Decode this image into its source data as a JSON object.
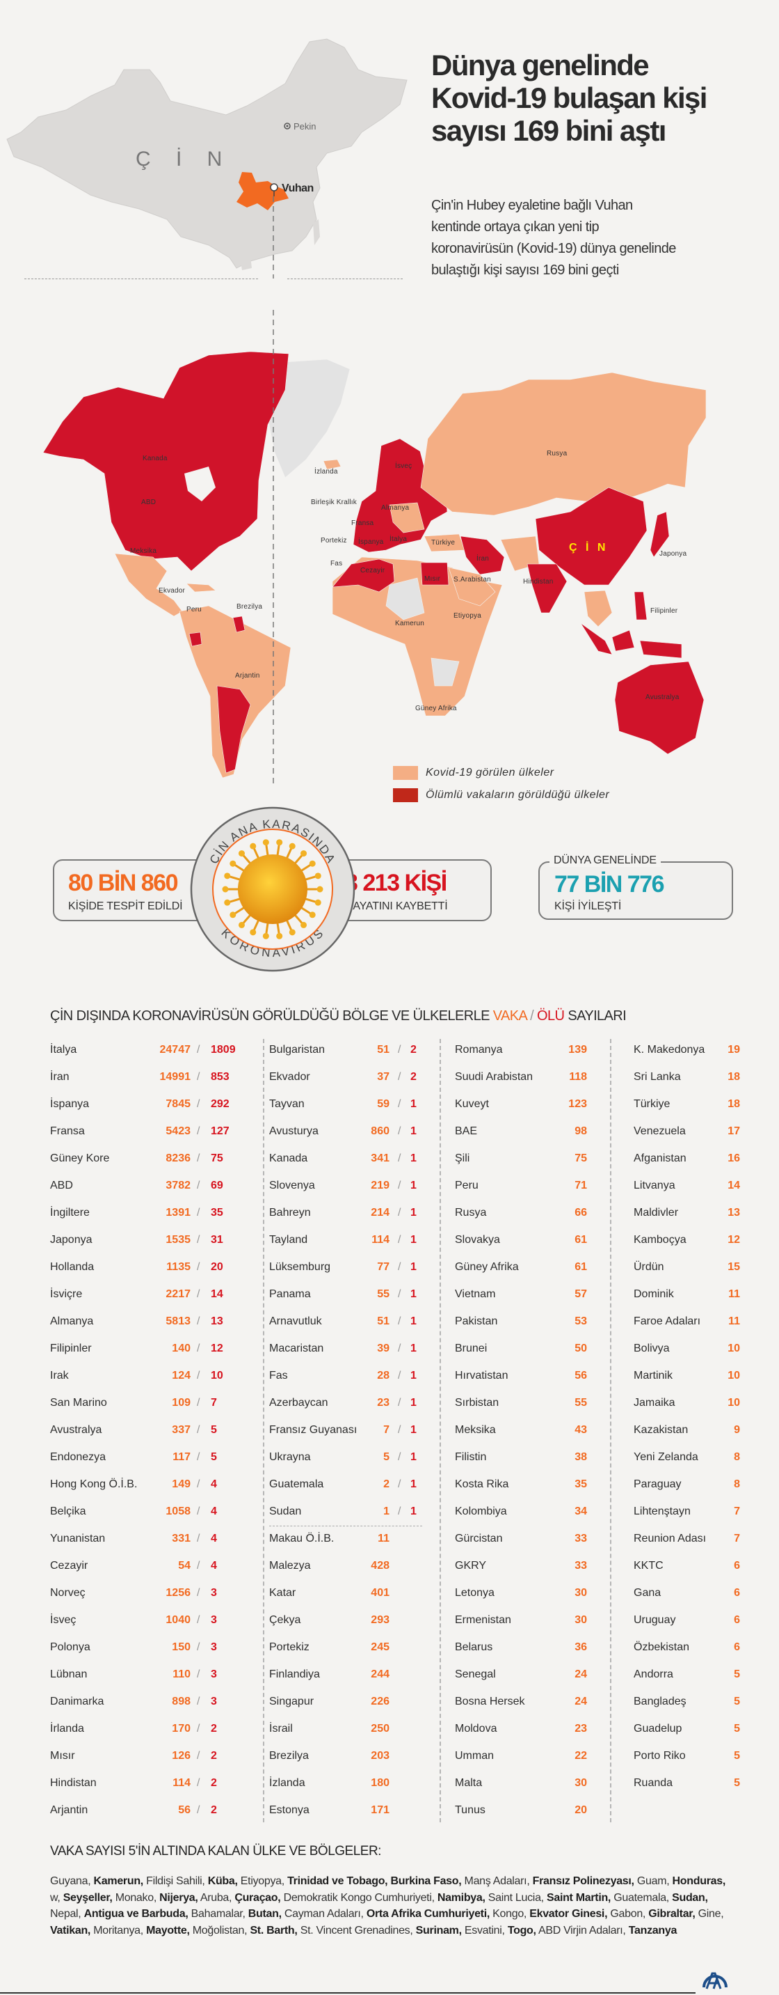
{
  "header": {
    "title": "Dünya genelinde Kovid-19 bulaşan kişi sayısı 169 bini aştı",
    "subtitle": "Çin'in Hubey eyaletine bağlı Vuhan kentinde ortaya çıkan yeni tip koronavirüsün (Kovid-19) dünya genelinde bulaştığı kişi sayısı 169 bini geçti"
  },
  "china_map": {
    "country": "Ç İ N",
    "capital": "Pekin",
    "city": "Vuhan",
    "highlight_color": "#f26a21"
  },
  "world_map": {
    "labels": {
      "kanada": "Kanada",
      "abd": "ABD",
      "meksika": "Meksika",
      "ekvador": "Ekvador",
      "peru": "Peru",
      "brezilya": "Brezilya",
      "arjantin": "Arjantin",
      "izlanda": "İzlanda",
      "birlesik_krallik": "Birleşik Krallık",
      "fransa": "Fransa",
      "portekiz": "Portekiz",
      "ispanya": "İspanya",
      "italya": "İtalya",
      "fas": "Fas",
      "cezayir": "Cezayir",
      "isvec": "İsveç",
      "almanya": "Almanya",
      "turkiye": "Türkiye",
      "iran": "İran",
      "misir": "Mısır",
      "s_arabistan": "S.Arabistan",
      "rusya": "Rusya",
      "cin": "Ç İ N",
      "japonya": "Japonya",
      "hindistan": "Hindistan",
      "filipinler": "Filipinler",
      "etiyopya": "Etiyopya",
      "kamerun": "Kamerun",
      "guney_afrika": "Güney Afrika",
      "avustralya": "Avustralya"
    },
    "legend": [
      {
        "label": "Kovid-19 görülen ülkeler",
        "color": "#f4ae84"
      },
      {
        "label": "Ölümlü vakaların görüldüğü ülkeler",
        "color": "#c0281a"
      }
    ],
    "colors": {
      "cases": "#f4ae84",
      "deaths": "#d0132a",
      "none": "#e3e3e3"
    }
  },
  "china_stats": {
    "ring_top": "ÇİN ANA KARASINDA",
    "ring_bottom": "KORONAVİRÜS",
    "cases_value": "80 BİN 860",
    "cases_label": "KİŞİDE TESPİT EDİLDİ",
    "deaths_value": "3 213 KİŞİ",
    "deaths_label": "HAYATINI KAYBETTİ"
  },
  "world_stats": {
    "label": "DÜNYA GENELİNDE",
    "recovered_value": "77 BİN 776",
    "recovered_label": "KİŞİ İYİLEŞTİ",
    "color": "#1ba0b0"
  },
  "table": {
    "title_prefix": "ÇİN DIŞINDA KORONAVİRÜSÜN GÖRÜLDÜĞÜ BÖLGE VE ÜLKELERLE ",
    "title_cases": "VAKA",
    "title_sep": " / ",
    "title_deaths": "ÖLÜ",
    "title_suffix": " SAYILARI",
    "columns": [
      [
        {
          "name": "İtalya",
          "cases": "24747",
          "deaths": "1809"
        },
        {
          "name": "İran",
          "cases": "14991",
          "deaths": "853"
        },
        {
          "name": "İspanya",
          "cases": "7845",
          "deaths": "292"
        },
        {
          "name": "Fransa",
          "cases": "5423",
          "deaths": "127"
        },
        {
          "name": "Güney Kore",
          "cases": "8236",
          "deaths": "75"
        },
        {
          "name": "ABD",
          "cases": "3782",
          "deaths": "69"
        },
        {
          "name": "İngiltere",
          "cases": "1391",
          "deaths": "35"
        },
        {
          "name": "Japonya",
          "cases": "1535",
          "deaths": "31"
        },
        {
          "name": "Hollanda",
          "cases": "1135",
          "deaths": "20"
        },
        {
          "name": "İsviçre",
          "cases": "2217",
          "deaths": "14"
        },
        {
          "name": "Almanya",
          "cases": "5813",
          "deaths": "13"
        },
        {
          "name": "Filipinler",
          "cases": "140",
          "deaths": "12"
        },
        {
          "name": "Irak",
          "cases": "124",
          "deaths": "10"
        },
        {
          "name": "San Marino",
          "cases": "109",
          "deaths": "7"
        },
        {
          "name": "Avustralya",
          "cases": "337",
          "deaths": "5"
        },
        {
          "name": "Endonezya",
          "cases": "117",
          "deaths": "5"
        },
        {
          "name": "Hong Kong Ö.İ.B.",
          "cases": "149",
          "deaths": "4"
        },
        {
          "name": "Belçika",
          "cases": "1058",
          "deaths": "4"
        },
        {
          "name": "Yunanistan",
          "cases": "331",
          "deaths": "4"
        },
        {
          "name": "Cezayir",
          "cases": "54",
          "deaths": "4"
        },
        {
          "name": "Norveç",
          "cases": "1256",
          "deaths": "3"
        },
        {
          "name": "İsveç",
          "cases": "1040",
          "deaths": "3"
        },
        {
          "name": "Polonya",
          "cases": "150",
          "deaths": "3"
        },
        {
          "name": "Lübnan",
          "cases": "110",
          "deaths": "3"
        },
        {
          "name": "Danimarka",
          "cases": "898",
          "deaths": "3"
        },
        {
          "name": "İrlanda",
          "cases": "170",
          "deaths": "2"
        },
        {
          "name": "Mısır",
          "cases": "126",
          "deaths": "2"
        },
        {
          "name": "Hindistan",
          "cases": "114",
          "deaths": "2"
        },
        {
          "name": "Arjantin",
          "cases": "56",
          "deaths": "2"
        }
      ],
      [
        {
          "name": "Bulgaristan",
          "cases": "51",
          "deaths": "2"
        },
        {
          "name": "Ekvador",
          "cases": "37",
          "deaths": "2"
        },
        {
          "name": "Tayvan",
          "cases": "59",
          "deaths": "1"
        },
        {
          "name": "Avusturya",
          "cases": "860",
          "deaths": "1"
        },
        {
          "name": "Kanada",
          "cases": "341",
          "deaths": "1"
        },
        {
          "name": "Slovenya",
          "cases": "219",
          "deaths": "1"
        },
        {
          "name": "Bahreyn",
          "cases": "214",
          "deaths": "1"
        },
        {
          "name": "Tayland",
          "cases": "114",
          "deaths": "1"
        },
        {
          "name": "Lüksemburg",
          "cases": "77",
          "deaths": "1"
        },
        {
          "name": "Panama",
          "cases": "55",
          "deaths": "1"
        },
        {
          "name": "Arnavutluk",
          "cases": "51",
          "deaths": "1"
        },
        {
          "name": "Macaristan",
          "cases": "39",
          "deaths": "1"
        },
        {
          "name": "Fas",
          "cases": "28",
          "deaths": "1"
        },
        {
          "name": "Azerbaycan",
          "cases": "23",
          "deaths": "1"
        },
        {
          "name": "Fransız Guyanası",
          "cases": "7",
          "deaths": "1"
        },
        {
          "name": "Ukrayna",
          "cases": "5",
          "deaths": "1"
        },
        {
          "name": "Guatemala",
          "cases": "2",
          "deaths": "1"
        },
        {
          "name": "Sudan",
          "cases": "1",
          "deaths": "1"
        },
        {
          "name": "Makau Ö.İ.B.",
          "cases": "11"
        },
        {
          "name": "Malezya",
          "cases": "428"
        },
        {
          "name": "Katar",
          "cases": "401"
        },
        {
          "name": "Çekya",
          "cases": "293"
        },
        {
          "name": "Portekiz",
          "cases": "245"
        },
        {
          "name": "Finlandiya",
          "cases": "244"
        },
        {
          "name": "Singapur",
          "cases": "226"
        },
        {
          "name": "İsrail",
          "cases": "250"
        },
        {
          "name": "Brezilya",
          "cases": "203"
        },
        {
          "name": "İzlanda",
          "cases": "180"
        },
        {
          "name": "Estonya",
          "cases": "171"
        }
      ],
      [
        {
          "name": "Romanya",
          "cases": "139"
        },
        {
          "name": "Suudi Arabistan",
          "cases": "118"
        },
        {
          "name": "Kuveyt",
          "cases": "123"
        },
        {
          "name": "BAE",
          "cases": "98"
        },
        {
          "name": "Şili",
          "cases": "75"
        },
        {
          "name": "Peru",
          "cases": "71"
        },
        {
          "name": "Rusya",
          "cases": "66"
        },
        {
          "name": "Slovakya",
          "cases": "61"
        },
        {
          "name": "Güney Afrika",
          "cases": "61"
        },
        {
          "name": "Vietnam",
          "cases": "57"
        },
        {
          "name": "Pakistan",
          "cases": "53"
        },
        {
          "name": "Brunei",
          "cases": "50"
        },
        {
          "name": "Hırvatistan",
          "cases": "56"
        },
        {
          "name": "Sırbistan",
          "cases": "55"
        },
        {
          "name": "Meksika",
          "cases": "43"
        },
        {
          "name": "Filistin",
          "cases": "38"
        },
        {
          "name": "Kosta Rika",
          "cases": "35"
        },
        {
          "name": "Kolombiya",
          "cases": "34"
        },
        {
          "name": "Gürcistan",
          "cases": "33"
        },
        {
          "name": "GKRY",
          "cases": "33"
        },
        {
          "name": "Letonya",
          "cases": "30"
        },
        {
          "name": "Ermenistan",
          "cases": "30"
        },
        {
          "name": "Belarus",
          "cases": "36"
        },
        {
          "name": "Senegal",
          "cases": "24"
        },
        {
          "name": "Bosna Hersek",
          "cases": "24"
        },
        {
          "name": "Moldova",
          "cases": "23"
        },
        {
          "name": "Umman",
          "cases": "22"
        },
        {
          "name": "Malta",
          "cases": "30"
        },
        {
          "name": "Tunus",
          "cases": "20"
        }
      ],
      [
        {
          "name": "K. Makedonya",
          "cases": "19"
        },
        {
          "name": "Sri Lanka",
          "cases": "18"
        },
        {
          "name": "Türkiye",
          "cases": "18"
        },
        {
          "name": "Venezuela",
          "cases": "17"
        },
        {
          "name": "Afganistan",
          "cases": "16"
        },
        {
          "name": "Litvanya",
          "cases": "14"
        },
        {
          "name": "Maldivler",
          "cases": "13"
        },
        {
          "name": "Kamboçya",
          "cases": "12"
        },
        {
          "name": "Ürdün",
          "cases": "15"
        },
        {
          "name": "Dominik",
          "cases": "11"
        },
        {
          "name": "Faroe Adaları",
          "cases": "11"
        },
        {
          "name": "Bolivya",
          "cases": "10"
        },
        {
          "name": "Martinik",
          "cases": "10"
        },
        {
          "name": "Jamaika",
          "cases": "10"
        },
        {
          "name": "Kazakistan",
          "cases": "9"
        },
        {
          "name": "Yeni Zelanda",
          "cases": "8"
        },
        {
          "name": "Paraguay",
          "cases": "8"
        },
        {
          "name": "Lihtenştayn",
          "cases": "7"
        },
        {
          "name": "Reunion Adası",
          "cases": "7"
        },
        {
          "name": "KKTC",
          "cases": "6"
        },
        {
          "name": "Gana",
          "cases": "6"
        },
        {
          "name": "Uruguay",
          "cases": "6"
        },
        {
          "name": "Özbekistan",
          "cases": "6"
        },
        {
          "name": "Andorra",
          "cases": "5"
        },
        {
          "name": "Bangladeş",
          "cases": "5"
        },
        {
          "name": "Guadelup",
          "cases": "5"
        },
        {
          "name": "Porto Riko",
          "cases": "5"
        },
        {
          "name": "Ruanda",
          "cases": "5"
        }
      ]
    ],
    "colors": {
      "cases": "#f26a21",
      "deaths": "#d7141f"
    }
  },
  "footer": {
    "title": "VAKA SAYISI 5'İN ALTINDA KALAN ÜLKE VE BÖLGELER:",
    "items": [
      {
        "text": "Guyana",
        "bold": false
      },
      {
        "text": "Kamerun",
        "bold": true
      },
      {
        "text": "Fildişi Sahili",
        "bold": false
      },
      {
        "text": "Küba",
        "bold": true
      },
      {
        "text": "Etiyopya",
        "bold": false
      },
      {
        "text": "Trinidad ve Tobago",
        "bold": true
      },
      {
        "text": "Burkina Faso",
        "bold": true
      },
      {
        "text": "Manş Adaları",
        "bold": false
      },
      {
        "text": "Fransız Polinezyası",
        "bold": true
      },
      {
        "text": "Guam",
        "bold": false
      },
      {
        "text": "Honduras",
        "bold": true
      },
      {
        "text": "w",
        "bold": false
      },
      {
        "text": "Seyşeller",
        "bold": true
      },
      {
        "text": "Monako",
        "bold": false
      },
      {
        "text": "Nijerya",
        "bold": true
      },
      {
        "text": "Aruba",
        "bold": false
      },
      {
        "text": "Çuraçao",
        "bold": true
      },
      {
        "text": "Demokratik Kongo Cumhuriyeti",
        "bold": false
      },
      {
        "text": "Namibya",
        "bold": true
      },
      {
        "text": "Saint Lucia",
        "bold": false
      },
      {
        "text": "Saint Martin",
        "bold": true
      },
      {
        "text": "Guatemala",
        "bold": false
      },
      {
        "text": "Sudan",
        "bold": true
      },
      {
        "text": "Nepal",
        "bold": false
      },
      {
        "text": "Antigua ve Barbuda",
        "bold": true
      },
      {
        "text": "Bahamalar",
        "bold": false
      },
      {
        "text": "Butan",
        "bold": true
      },
      {
        "text": "Cayman Adaları",
        "bold": false
      },
      {
        "text": "Orta Afrika Cumhuriyeti",
        "bold": true
      },
      {
        "text": "Kongo",
        "bold": false
      },
      {
        "text": "Ekvator Ginesi",
        "bold": true
      },
      {
        "text": "Gabon",
        "bold": false
      },
      {
        "text": "Gibraltar",
        "bold": true
      },
      {
        "text": "Gine",
        "bold": false
      },
      {
        "text": "Vatikan",
        "bold": true
      },
      {
        "text": "Moritanya",
        "bold": false
      },
      {
        "text": "Mayotte",
        "bold": true
      },
      {
        "text": "Moğolistan",
        "bold": false
      },
      {
        "text": "St. Barth",
        "bold": true
      },
      {
        "text": "St. Vincent Grenadines",
        "bold": false
      },
      {
        "text": "Surinam",
        "bold": true
      },
      {
        "text": "Esvatini",
        "bold": false
      },
      {
        "text": "Togo",
        "bold": true
      },
      {
        "text": "ABD Virjin Adaları",
        "bold": false
      },
      {
        "text": "Tanzanya",
        "bold": true
      }
    ],
    "logo": "ANADOLU AJANSI"
  }
}
